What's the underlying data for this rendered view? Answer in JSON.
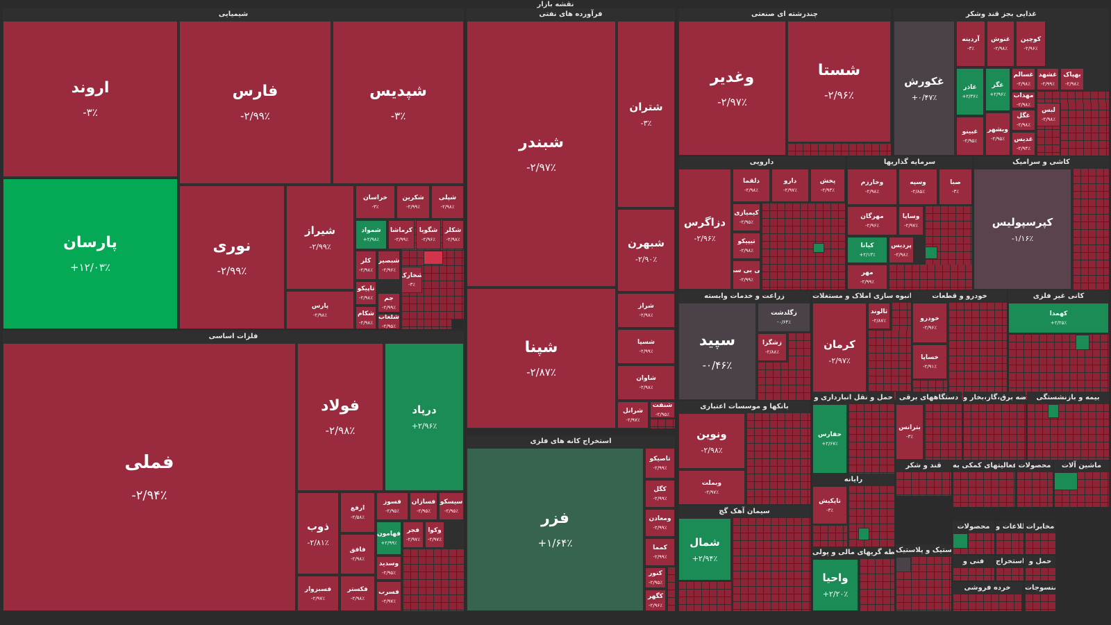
{
  "page_title": "نقشه بازار",
  "colors": {
    "neg": "#9a2a3e",
    "pos": "#05a854",
    "pos_dark": "#37644f",
    "neutral": "#4a4248",
    "bg": "#2b2b2b"
  },
  "sectors": [
    {
      "key": "s_shimiai",
      "title": "شیمیایی"
    },
    {
      "key": "s_naft",
      "title": "فرآورده های نفتی"
    },
    {
      "key": "s_chand",
      "title": "چندرشته ای صنعتی"
    },
    {
      "key": "s_ghazai",
      "title": "غذایی بجز قند وشکر"
    },
    {
      "key": "s_felezat",
      "title": "فلزات اساسی"
    },
    {
      "key": "s_estekhraj",
      "title": "استخراج کانه های فلزی"
    },
    {
      "key": "s_daroo",
      "title": "دارویی"
    },
    {
      "key": "s_sarmaye",
      "title": "سرمایه گذاریها"
    },
    {
      "key": "s_kashi",
      "title": "کاشی و سرامیک"
    },
    {
      "key": "s_zeraat",
      "title": "زراعت و خدمات وابسته"
    },
    {
      "key": "s_anboh",
      "title": "انبوه سازی املاک و مستغلات"
    },
    {
      "key": "s_khodro",
      "title": "خودرو و قطعات"
    },
    {
      "key": "s_kani",
      "title": "کانی غیر فلزی"
    },
    {
      "key": "s_banks",
      "title": "بانکها و موسسات اعتباری"
    },
    {
      "key": "s_haml",
      "title": "حمل و نقل انبارداری و"
    },
    {
      "key": "s_dastgah",
      "title": "دستگاههای برقی"
    },
    {
      "key": "s_arze",
      "title": "عرضه برق،گاز،بخار و"
    },
    {
      "key": "s_bime",
      "title": "بیمه و بازنشستگی"
    },
    {
      "key": "s_siman",
      "title": "سیمان آهک گچ"
    },
    {
      "key": "s_rayane",
      "title": "رایانه"
    },
    {
      "key": "s_ghand",
      "title": "قند و شکر"
    },
    {
      "key": "s_faaliat",
      "title": "فعالیتهای کمکی به"
    },
    {
      "key": "s_mahsoolat",
      "title": "محصولات"
    },
    {
      "key": "s_mashin",
      "title": "ماشین آلات"
    },
    {
      "key": "s_mahsoolat2",
      "title": "محصولات"
    },
    {
      "key": "s_ettelaat",
      "title": "اطلاعات و"
    },
    {
      "key": "s_mokhaberat",
      "title": "مخابرات"
    },
    {
      "key": "s_lastik",
      "title": "لاستیک و پلاستیک"
    },
    {
      "key": "s_vasete",
      "title": "واسطه گریهای مالی و پولی"
    },
    {
      "key": "s_fanni",
      "title": "فنی و"
    },
    {
      "key": "s_estekhraj2",
      "title": "استخراج"
    },
    {
      "key": "s_hamlo",
      "title": "حمل و"
    },
    {
      "key": "s_kharde",
      "title": "خرده فروشی"
    },
    {
      "key": "s_mansoojat",
      "title": "منسوجات"
    }
  ],
  "tiles": {
    "arvand": {
      "s": "اروند",
      "c": "-۳٪"
    },
    "fars": {
      "s": "فارس",
      "c": "-۲/۹۹٪"
    },
    "shepdis": {
      "s": "شپدیس",
      "c": "-۳٪"
    },
    "parsan": {
      "s": "پارسان",
      "c": "+۱۲/۰۳٪"
    },
    "noori": {
      "s": "نوری",
      "c": "-۲/۹۹٪"
    },
    "shiraz": {
      "s": "شیراز",
      "c": "-۲/۹۹٪"
    },
    "pars": {
      "s": "پارس",
      "c": "-۲/۹۸٪"
    },
    "khorasan": {
      "s": "خراسان",
      "c": "-۳٪"
    },
    "shekarin": {
      "s": "شکرین",
      "c": "-۲/۹۹٪"
    },
    "shepli": {
      "s": "شپلی",
      "c": "-۲/۹۸٪"
    },
    "shamvad": {
      "s": "شمواد",
      "c": "+۲/۹۸٪"
    },
    "kermasha": {
      "s": "کرماشا",
      "c": "-۲/۹۹٪"
    },
    "shegoya": {
      "s": "شگویا",
      "c": "-۲/۹۶٪"
    },
    "shekalar": {
      "s": "شکلر",
      "c": "-۲/۹۸٪"
    },
    "kalar": {
      "s": "کلر",
      "c": "-۲/۹۸٪"
    },
    "shebasir": {
      "s": "شبصیر",
      "c": "-۲/۹۶٪"
    },
    "shekhark": {
      "s": "شخارک",
      "c": "-۳٪"
    },
    "tapiko": {
      "s": "تاپیکو",
      "c": "-۲/۹۸٪"
    },
    "jam": {
      "s": "جم",
      "c": "-۲/۹۹٪"
    },
    "shekam": {
      "s": "شکام",
      "c": "-۲/۹۸٪"
    },
    "shealab": {
      "s": "شلعاب",
      "c": "-۲/۹۵٪"
    },
    "shebandar": {
      "s": "شبندر",
      "c": "-۲/۹۷٪"
    },
    "shetran": {
      "s": "شتران",
      "c": "-۳٪"
    },
    "shebahran": {
      "s": "شبهرن",
      "c": "-۲/۹۰٪"
    },
    "shepna": {
      "s": "شپنا",
      "c": "-۲/۸۷٪"
    },
    "sheraz": {
      "s": "شراز",
      "c": "-۲/۹۸٪"
    },
    "shesapa": {
      "s": "شسپا",
      "c": "-۲/۹۹٪"
    },
    "shavan": {
      "s": "شاوان",
      "c": "-۲/۹۸٪"
    },
    "sherangi": {
      "s": "شرانل",
      "c": "-۲/۹۷٪"
    },
    "shenaft": {
      "s": "شنفت",
      "c": "-۲/۹۵٪"
    },
    "vaghadir": {
      "s": "وغدیر",
      "c": "-۲/۹۷٪"
    },
    "shasta": {
      "s": "شستا",
      "c": "-۲/۹۶٪"
    },
    "ghakoorosh": {
      "s": "غکورش",
      "c": "+۰/۴۷٪"
    },
    "ardine": {
      "s": "آردینه",
      "c": "-۳٪"
    },
    "ghanoosh": {
      "s": "غنوش",
      "c": "-۲/۹۸٪"
    },
    "koochin": {
      "s": "کوچین",
      "c": "-۲/۹۶٪"
    },
    "ghazar": {
      "s": "غاذر",
      "c": "+۲/۳۶٪"
    },
    "ghegar": {
      "s": "غگز",
      "c": "+۲/۹۶٪"
    },
    "ghasalam": {
      "s": "غسالم",
      "c": "-۲/۹۸٪"
    },
    "ghashahd": {
      "s": "غشهد",
      "c": "-۲/۹۹٪"
    },
    "behpak": {
      "s": "بهپاک",
      "c": "-۲/۹۸٪"
    },
    "mehdab": {
      "s": "مهداب",
      "c": "-۲/۹۸٪"
    },
    "ghebino": {
      "s": "غبینو",
      "c": "-۲/۹۵٪"
    },
    "vebshahr": {
      "s": "وبشهر",
      "c": "-۲/۹۵٪"
    },
    "ghegel": {
      "s": "غگل",
      "c": "-۲/۹۸٪"
    },
    "ghadis": {
      "s": "غدیس",
      "c": "-۲/۹۴٪"
    },
    "lebas": {
      "s": "لبس",
      "c": "-۲/۹۸٪"
    },
    "felami": {
      "s": "فملی",
      "c": "-۲/۹۴٪"
    },
    "foolad": {
      "s": "فولاد",
      "c": "-۲/۹۸٪"
    },
    "dorpad": {
      "s": "درپاد",
      "c": "+۲/۹۶٪"
    },
    "zob": {
      "s": "ذوب",
      "c": "-۲/۸۱٪"
    },
    "arfa": {
      "s": "ارفع",
      "c": "-۲/۵۸٪"
    },
    "fesooz": {
      "s": "فسوز",
      "c": "-۲/۹۵٪"
    },
    "fesazan": {
      "s": "فسازان",
      "c": "-۲/۹۵٪"
    },
    "sisko": {
      "s": "سیسکو",
      "c": "-۲/۹۵٪"
    },
    "fahamoon": {
      "s": "فهامون",
      "c": "+۲/۹۹٪"
    },
    "fajr": {
      "s": "فجر",
      "c": "-۲/۹۷٪"
    },
    "vakova": {
      "s": "وکوا",
      "c": "-۲/۹۷٪"
    },
    "fafagh": {
      "s": "فافق",
      "c": "-۲/۹۸٪"
    },
    "vesandid": {
      "s": "وسدید",
      "c": "-۲/۹۵٪"
    },
    "fesebzevar": {
      "s": "فسبزوار",
      "c": "-۲/۹۷٪"
    },
    "fakestar": {
      "s": "فکستر",
      "c": "-۲/۹۸٪"
    },
    "fesarb": {
      "s": "فسرب",
      "c": "-۲/۹۷٪"
    },
    "fazar": {
      "s": "فزر",
      "c": "+۱/۶۴٪"
    },
    "tasiko": {
      "s": "تاصیکو",
      "c": "-۲/۹۹٪"
    },
    "kegel": {
      "s": "کگل",
      "c": "-۲/۹۹٪"
    },
    "maadan": {
      "s": "ومعادن",
      "c": "-۲/۹۹٪"
    },
    "kamma": {
      "s": "کمما",
      "c": "-۲/۹۹٪"
    },
    "kenoor": {
      "s": "کنور",
      "c": "-۲/۹۵٪"
    },
    "kegohar": {
      "s": "کگهر",
      "c": "-۲/۹۶٪"
    },
    "dezagros": {
      "s": "دزاگرس",
      "c": "-۲/۹۶٪"
    },
    "dalma": {
      "s": "دلقما",
      "c": "-۲/۹۸٪"
    },
    "daroo": {
      "s": "دارو",
      "c": "-۲/۹۷٪"
    },
    "pakhsh": {
      "s": "پخش",
      "c": "-۲/۹۳٪"
    },
    "kimiazi": {
      "s": "کیمیازی",
      "c": "-۲/۹۵٪"
    },
    "tipiko": {
      "s": "تیپیکو",
      "c": "-۲/۹۸٪"
    },
    "kibisi": {
      "s": "کی بی سی",
      "c": "-۲/۹۹٪"
    },
    "vakharazm": {
      "s": "وخارزم",
      "c": "-۲/۹۸٪"
    },
    "vasepe": {
      "s": "وسپه",
      "c": "-۲/۸۵٪"
    },
    "saba": {
      "s": "صبا",
      "c": "-۳٪"
    },
    "mehrgan": {
      "s": "مهرگان",
      "c": "-۲/۹۶٪"
    },
    "vasapa": {
      "s": "وساپا",
      "c": "-۲/۹۷٪"
    },
    "kiana": {
      "s": "کیانا",
      "c": "+۲/۱۳٪"
    },
    "pardis": {
      "s": "پردیس",
      "c": "-۲/۹۸٪"
    },
    "mehr": {
      "s": "مهر",
      "c": "-۲/۹۹٪"
    },
    "keperspolis": {
      "s": "کپرسپولیس",
      "c": "-۱/۱۶٪"
    },
    "sepid": {
      "s": "سپید",
      "c": "-۰/۴۶٪"
    },
    "zegaldasht": {
      "s": "زگلدشت",
      "c": "-۰/۶۴٪"
    },
    "zeshgez": {
      "s": "زشگزا",
      "c": "-۲/۸۸٪"
    },
    "kerman": {
      "s": "کرمان",
      "c": "-۲/۹۷٪"
    },
    "taloond": {
      "s": "ثالوند",
      "c": "-۲/۸۷٪"
    },
    "khodro": {
      "s": "خودرو",
      "c": "-۲/۹۶٪"
    },
    "khesapa": {
      "s": "خساپا",
      "c": "-۲/۹۱٪"
    },
    "kahmada": {
      "s": "کهمدا",
      "c": "+۲/۲۵٪"
    },
    "vanovin": {
      "s": "ونوین",
      "c": "-۲/۹۸٪"
    },
    "vebmellat": {
      "s": "وبملت",
      "c": "-۲/۹۷٪"
    },
    "haffars": {
      "s": "حفارس",
      "c": "+۲/۶۷٪"
    },
    "batrans": {
      "s": "بترانس",
      "c": "-۳٪"
    },
    "shemal": {
      "s": "شمال",
      "c": "+۲/۹۴٪"
    },
    "tapkish": {
      "s": "تاپکیش",
      "c": "-۳٪"
    },
    "vaha": {
      "s": "واحیا",
      "c": "+۲/۲۰٪"
    }
  }
}
